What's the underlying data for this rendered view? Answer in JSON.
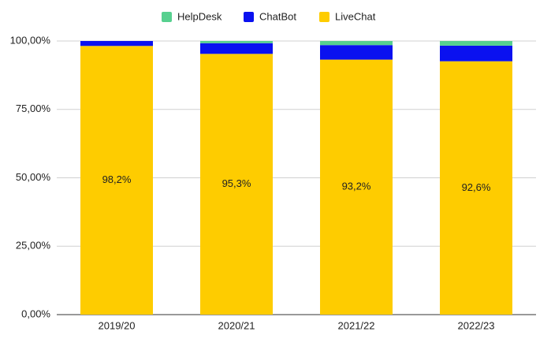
{
  "chart_data": {
    "type": "stacked_bar",
    "categories": [
      "2019/20",
      "2020/21",
      "2021/22",
      "2022/23"
    ],
    "series": [
      {
        "name": "HelpDesk",
        "color": "#57d08f",
        "values": [
          0,
          0.8,
          1.5,
          1.7
        ]
      },
      {
        "name": "ChatBot",
        "color": "#0a11f0",
        "values": [
          1.8,
          3.9,
          5.3,
          5.7
        ]
      },
      {
        "name": "LiveChat",
        "color": "#fecc00",
        "values": [
          98.2,
          95.3,
          93.2,
          92.6
        ],
        "value_labels": [
          "98,2%",
          "95,3%",
          "93,2%",
          "92,6%"
        ]
      }
    ],
    "ylim": [
      0,
      100
    ],
    "yticks": [
      {
        "value": 0,
        "label": "0,00%"
      },
      {
        "value": 25,
        "label": "25,00%"
      },
      {
        "value": 50,
        "label": "50,00%"
      },
      {
        "value": 75,
        "label": "75,00%"
      },
      {
        "value": 100,
        "label": "100,00%"
      }
    ],
    "grid": true,
    "legend": "top"
  }
}
